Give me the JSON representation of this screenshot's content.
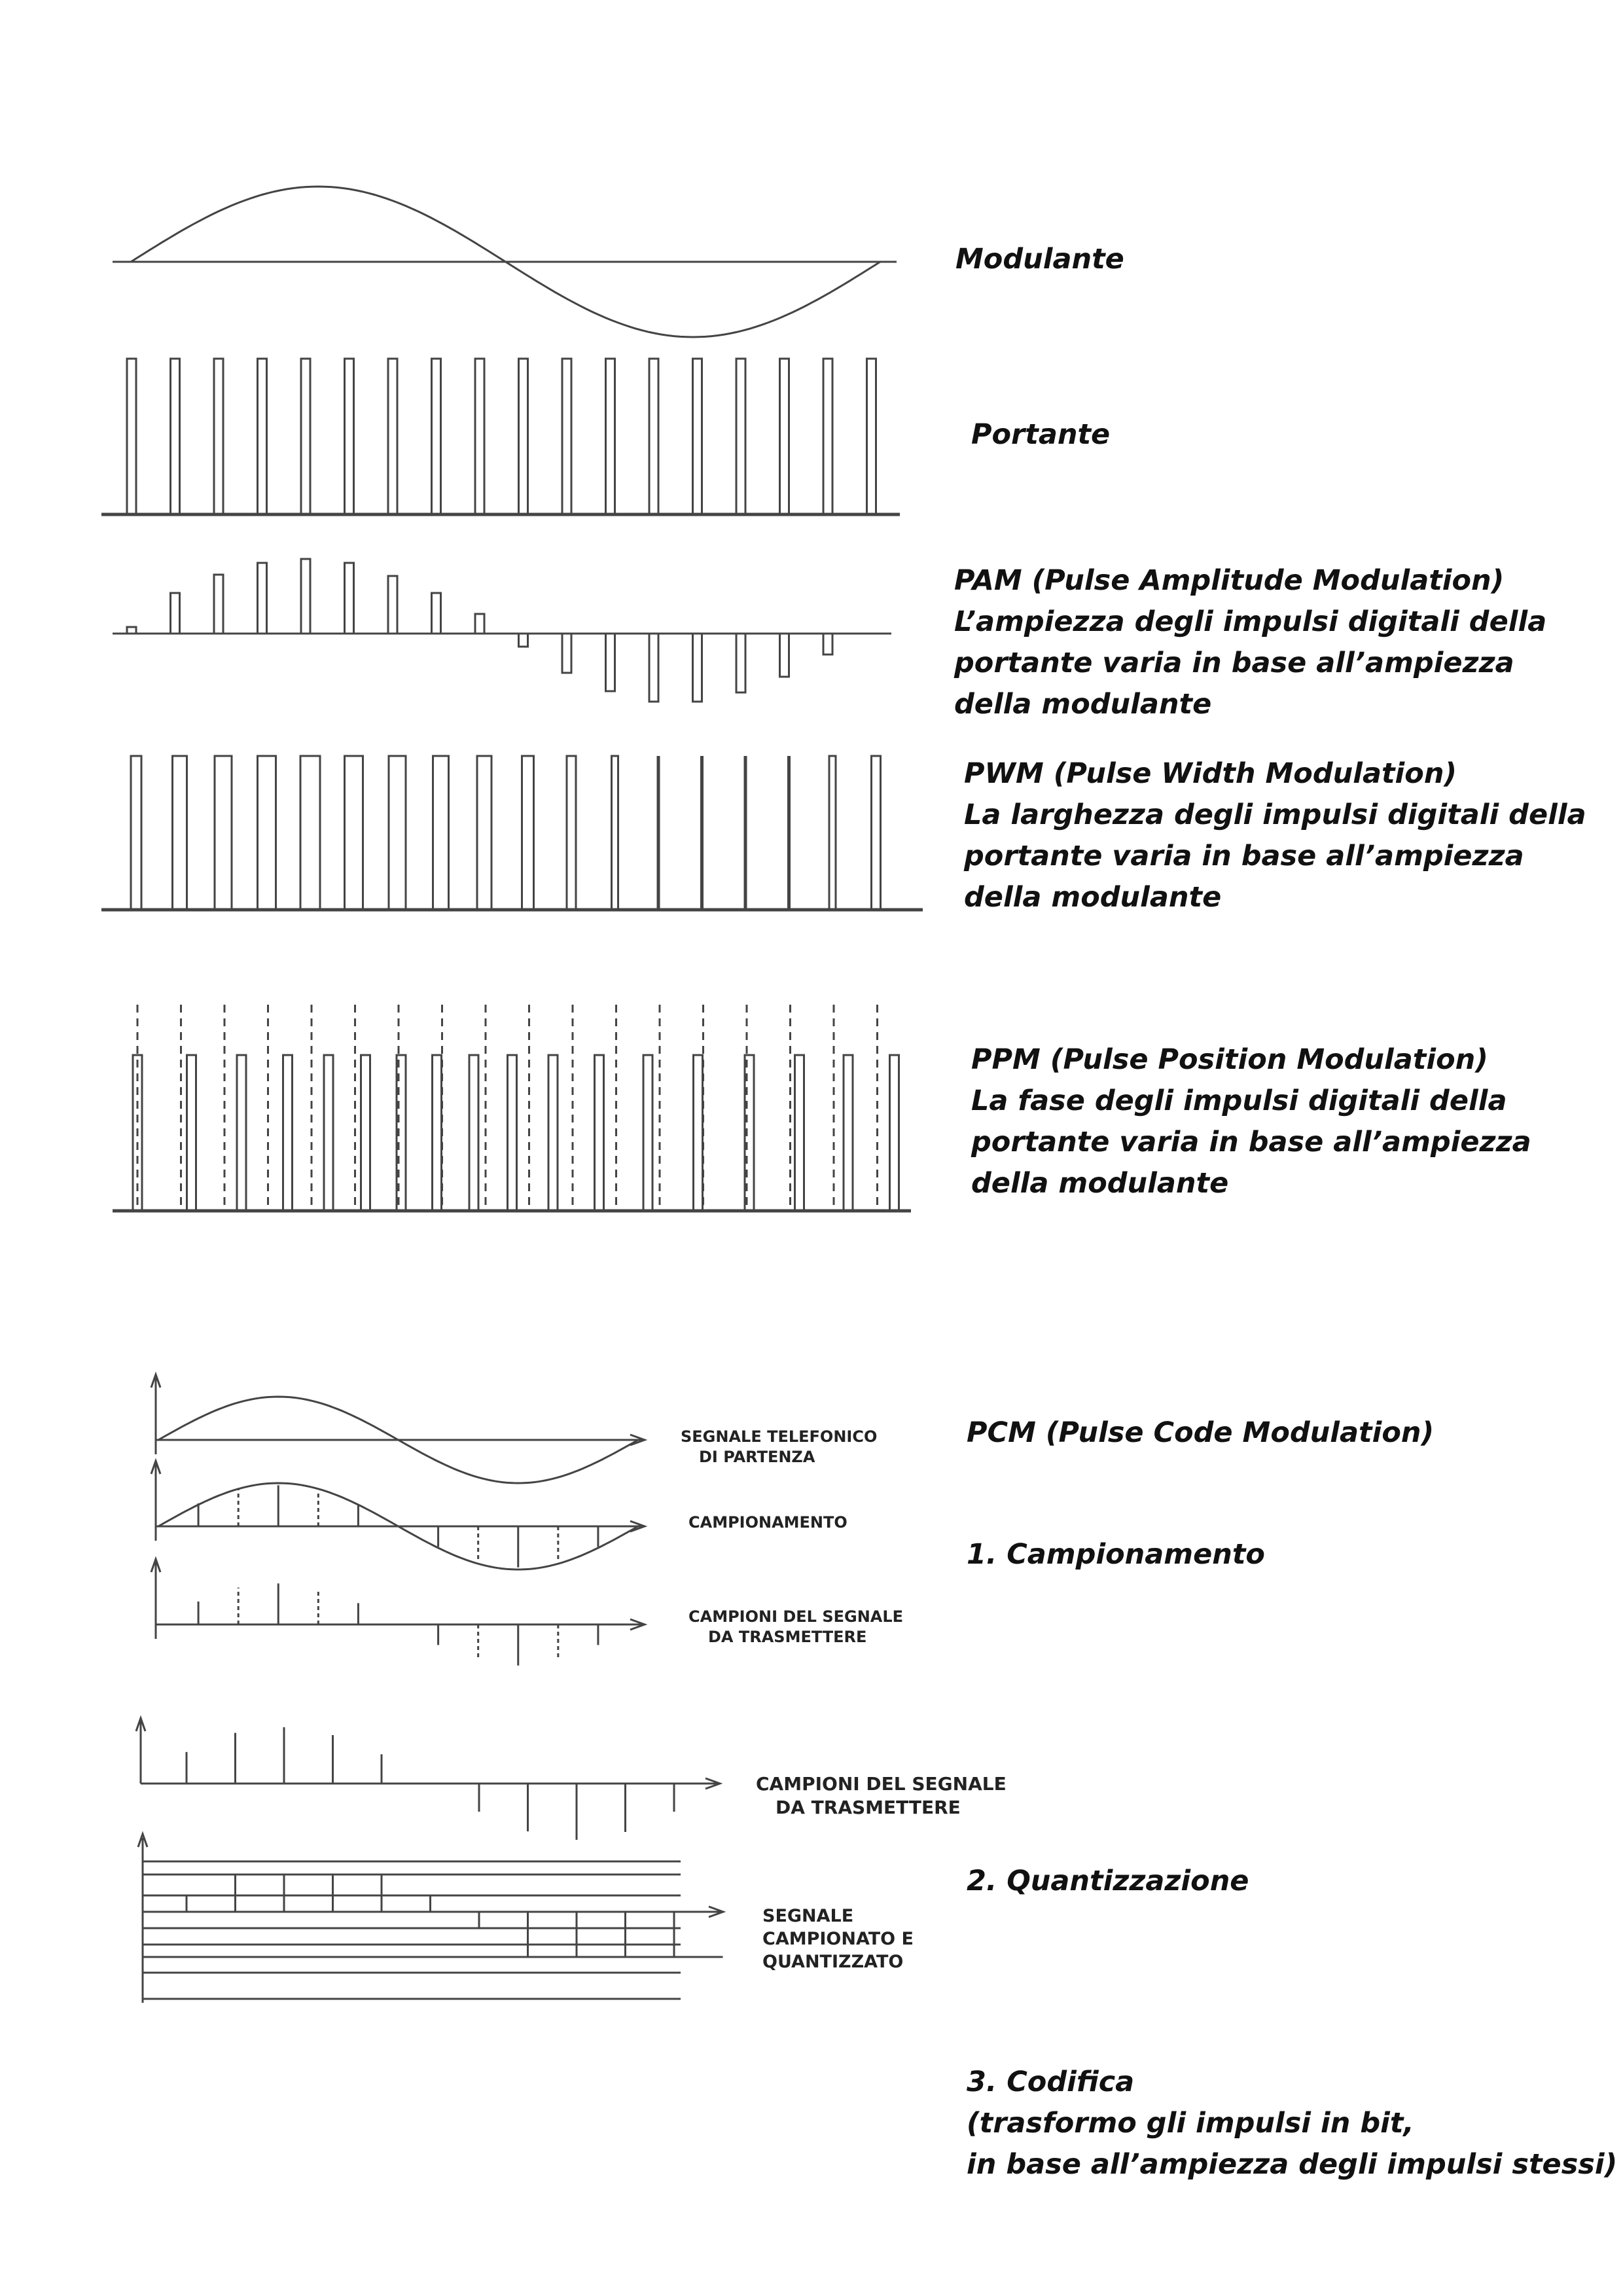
{
  "captions": {
    "modulante": [
      "Modulante"
    ],
    "portante": [
      "Portante"
    ],
    "pam": [
      "PAM (Pulse Amplitude Modulation)",
      "L’ampiezza degli impulsi digitali della",
      "portante varia in base all’ampiezza",
      "della modulante"
    ],
    "pwm": [
      "PWM (Pulse Width Modulation)",
      "La larghezza degli impulsi digitali della",
      "portante varia in base all’ampiezza",
      "della modulante"
    ],
    "ppm": [
      "PPM (Pulse Position Modulation)",
      "La fase degli impulsi digitali della",
      "portante varia in base all’ampiezza",
      "della modulante"
    ],
    "pcm": [
      "PCM (Pulse Code Modulation)"
    ],
    "step1": [
      "1. Campionamento"
    ],
    "step2": [
      "2. Quantizzazione"
    ],
    "step3": [
      "3. Codifica",
      "(trasformo gli impulsi in bit,",
      "in base all’ampiezza degli impulsi stessi)"
    ]
  },
  "signal_labels": {
    "segnale_telefonico": [
      "SEGNALE TELEFONICO",
      "DI PARTENZA"
    ],
    "campionamento": [
      "CAMPIONAMENTO"
    ],
    "campioni_1": [
      "CAMPIONI DEL SEGNALE",
      "DA TRASMETTERE"
    ],
    "campioni_2": [
      "CAMPIONI DEL SEGNALE",
      "DA TRASMETTERE"
    ],
    "segnale_quantizzato": [
      "SEGNALE",
      "CAMPIONATO E",
      "QUANTIZZATO"
    ]
  },
  "samples": [
    0.56,
    0.9,
    1.0,
    0.86,
    0.52,
    0.0,
    -0.5,
    -0.85,
    -1.0,
    -0.86,
    -0.5,
    0.0
  ],
  "quantized_levels": [
    1,
    2,
    2,
    2,
    1,
    0,
    -1,
    -2,
    -2,
    -2,
    -2,
    0
  ],
  "colors": {
    "stroke": "#444444",
    "text": "#111111"
  }
}
